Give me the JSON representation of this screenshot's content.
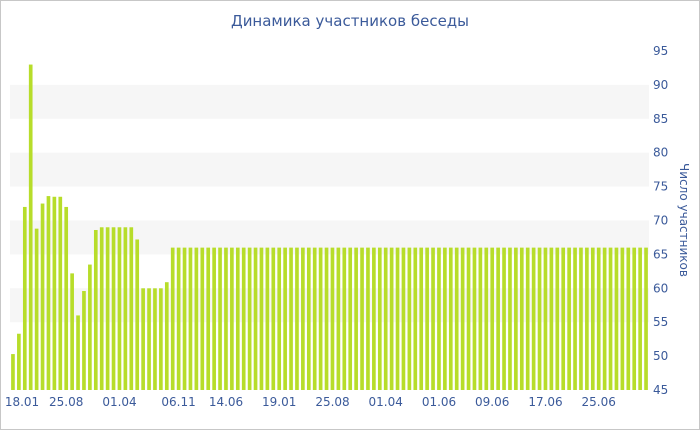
{
  "chart_data": {
    "type": "bar",
    "title": "Динамика участников беседы",
    "ylabel": "Число участников",
    "xlabel": "",
    "ylim": [
      45,
      95
    ],
    "yticks": [
      45,
      50,
      55,
      60,
      65,
      70,
      75,
      80,
      85,
      90,
      95
    ],
    "xtick_labels": [
      {
        "index": 0,
        "label": "18.01"
      },
      {
        "index": 9,
        "label": "25.08"
      },
      {
        "index": 18,
        "label": "01.04"
      },
      {
        "index": 28,
        "label": "06.11"
      },
      {
        "index": 36,
        "label": "14.06"
      },
      {
        "index": 45,
        "label": "19.01"
      },
      {
        "index": 54,
        "label": "25.08"
      },
      {
        "index": 63,
        "label": "01.04"
      },
      {
        "index": 72,
        "label": "01.06"
      },
      {
        "index": 81,
        "label": "09.06"
      },
      {
        "index": 90,
        "label": "17.06"
      },
      {
        "index": 99,
        "label": "25.06"
      }
    ],
    "bar_color": "#b7dd2a",
    "grid_band_color": "#f6f6f6",
    "values": [
      50.3,
      53.3,
      72,
      93,
      68.8,
      72.5,
      73.6,
      73.5,
      73.5,
      72,
      62.2,
      56,
      59.6,
      63.5,
      68.6,
      69,
      69,
      69,
      69,
      69,
      69,
      67.2,
      60,
      60,
      60,
      60,
      60.9,
      66,
      66,
      66,
      66,
      66,
      66,
      66,
      66,
      66,
      66,
      66,
      66,
      66,
      66,
      66,
      66,
      66,
      66,
      66,
      66,
      66,
      66,
      66,
      66,
      66,
      66,
      66,
      66,
      66,
      66,
      66,
      66,
      66,
      66,
      66,
      66,
      66,
      66,
      66,
      66,
      66,
      66,
      66,
      66,
      66,
      66,
      66,
      66,
      66,
      66,
      66,
      66,
      66,
      66,
      66,
      66,
      66,
      66,
      66,
      66,
      66,
      66,
      66,
      66,
      66,
      66,
      66,
      66,
      66,
      66,
      66,
      66,
      66,
      66,
      66,
      66,
      66,
      66,
      66,
      66,
      66
    ]
  }
}
